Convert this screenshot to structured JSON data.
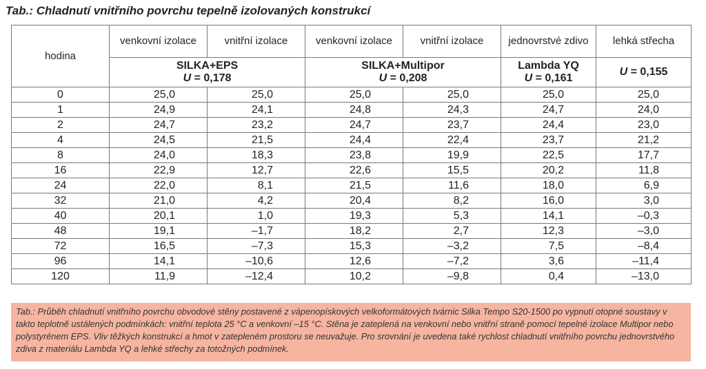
{
  "title": "Tab.: Chladnutí vnitřního povrchu tepelně izolovaných konstrukcí",
  "header": {
    "hour_label": "hodina",
    "columns": [
      "venkovní izolace",
      "vnitřní izolace",
      "venkovní izolace",
      "vnitřní izolace",
      "jednovrstvé zdivo",
      "lehká střecha"
    ],
    "groups": [
      {
        "name": "SILKA+EPS",
        "u_label": "U",
        "u_value": "= 0,178"
      },
      {
        "name": "SILKA+Multipor",
        "u_label": "U",
        "u_value": "= 0,208"
      },
      {
        "name": "Lambda YQ",
        "u_label": "U",
        "u_value": "= 0,161"
      },
      {
        "name": "",
        "u_label": "U",
        "u_value": "= 0,155"
      }
    ]
  },
  "rows": [
    {
      "hour": "0",
      "values": [
        "25,0",
        "25,0",
        "25,0",
        "25,0",
        "25,0",
        "25,0"
      ]
    },
    {
      "hour": "1",
      "values": [
        "24,9",
        "24,1",
        "24,8",
        "24,3",
        "24,7",
        "24,0"
      ]
    },
    {
      "hour": "2",
      "values": [
        "24,7",
        "23,2",
        "24,7",
        "23,7",
        "24,4",
        "23,0"
      ]
    },
    {
      "hour": "4",
      "values": [
        "24,5",
        "21,5",
        "24,4",
        "22,4",
        "23,7",
        "21,2"
      ]
    },
    {
      "hour": "8",
      "values": [
        "24,0",
        "18,3",
        "23,8",
        "19,9",
        "22,5",
        "17,7"
      ]
    },
    {
      "hour": "16",
      "values": [
        "22,9",
        "12,7",
        "22,6",
        "15,5",
        "20,2",
        "11,8"
      ]
    },
    {
      "hour": "24",
      "values": [
        "22,0",
        "8,1",
        "21,5",
        "11,6",
        "18,0",
        "6,9"
      ]
    },
    {
      "hour": "32",
      "values": [
        "21,0",
        "4,2",
        "20,4",
        "8,2",
        "16,0",
        "3,0"
      ]
    },
    {
      "hour": "40",
      "values": [
        "20,1",
        "1,0",
        "19,3",
        "5,3",
        "14,1",
        "–0,3"
      ]
    },
    {
      "hour": "48",
      "values": [
        "19,1",
        "–1,7",
        "18,2",
        "2,7",
        "12,3",
        "–3,0"
      ]
    },
    {
      "hour": "72",
      "values": [
        "16,5",
        "–7,3",
        "15,3",
        "–3,2",
        "7,5",
        "–8,4"
      ]
    },
    {
      "hour": "96",
      "values": [
        "14,1",
        "–10,6",
        "12,6",
        "–7,2",
        "3,6",
        "–11,4"
      ]
    },
    {
      "hour": "120",
      "values": [
        "11,9",
        "–12,4",
        "10,2",
        "–9,8",
        "0,4",
        "–13,0"
      ]
    }
  ],
  "caption": "Tab.: Průběh chladnutí vnitřního povrchu obvodové stěny postavené z vápenopískových velkoformátových tvárnic Silka Tempo S20-1500 po vypnutí otopné soustavy v takto teplotně ustálených podmínkách: vnitřní teplota 25 °C a venkovní –15 °C. Stěna je zateplená na venkovní nebo vnitřní straně pomocí tepelné izolace Multipor nebo polystyrénem EPS. Vliv těžkých konstrukcí a hmot v zatepleném prostoru se neuvažuje. Pro srovnání je uvedena také rychlost chladnutí vnitřního povrchu jednovrstvého zdiva z materiálu Lambda YQ a lehké střechy za totožných podmínek.",
  "colors": {
    "caption_bg": "#f6b5a1",
    "border": "#777777",
    "text": "#222222"
  }
}
